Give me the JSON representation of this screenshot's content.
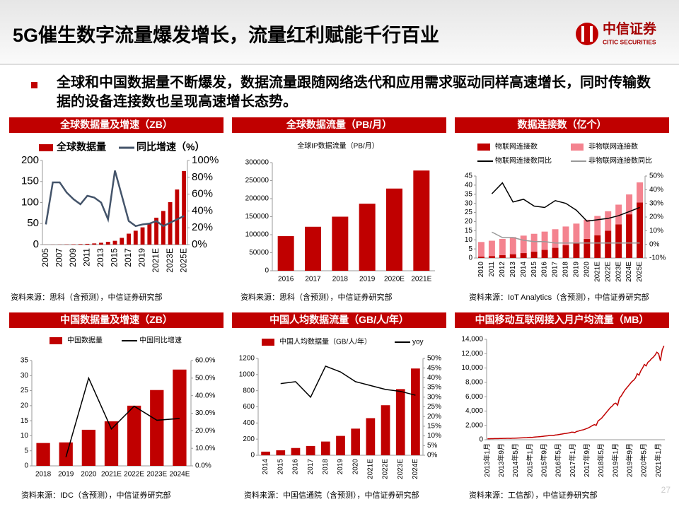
{
  "title": "5G催生数字流量爆发增长，流量红利赋能千行百业",
  "logo_name": "中信证券",
  "logo_en": "CITIC SECURITIES",
  "bullet": "全球和中国数据量不断爆发，数据流量跟随网络迭代和应用需求驱动同样高速增长，同时传输数据的设备连接数也呈现高速增长态势。",
  "page_number": "27",
  "chart_data": [
    {
      "type": "combo",
      "title": "全球数据量及增速（ZB）",
      "source": "资料来源：思科（含预测），中信证券研究部",
      "categories": [
        "2005",
        null,
        "2007",
        null,
        "2009",
        null,
        "2011",
        null,
        "2013",
        null,
        "2015",
        null,
        "2017",
        null,
        "2019",
        null,
        "2021E",
        null,
        "2023E",
        null,
        "2025E"
      ],
      "series": [
        {
          "name": "全球数据量",
          "type": "bar",
          "color": "#c00000",
          "values": [
            0.1,
            0.2,
            0.3,
            0.5,
            0.8,
            1.2,
            1.8,
            2.8,
            4.4,
            6.6,
            9,
            16,
            26,
            33,
            41,
            50,
            64,
            80,
            101,
            131,
            175
          ]
        },
        {
          "name": "同比增速（%）",
          "type": "line",
          "axis": "y2",
          "color": "#44546a",
          "values": [
            24,
            74,
            74,
            62,
            54,
            48,
            58,
            56,
            50,
            30,
            88,
            58,
            28,
            22,
            24,
            25,
            28,
            22,
            26,
            30,
            34
          ]
        }
      ],
      "ylim": [
        0,
        200
      ],
      "yticks": [
        0,
        50,
        100,
        150,
        200
      ],
      "y2lim": [
        0,
        100
      ],
      "y2ticks": [
        {
          "value": 0,
          "label": "0%"
        },
        {
          "value": 20,
          "label": "20%"
        },
        {
          "value": 40,
          "label": "40%"
        },
        {
          "value": 60,
          "label": "60%"
        },
        {
          "value": 80,
          "label": "80%"
        },
        {
          "value": 100,
          "label": "100%"
        }
      ]
    },
    {
      "type": "bar",
      "title": "全球数据流量（PB/月）",
      "subtitle": "全球IP数据流量（PB/月）",
      "source": "资料来源：思科（含预测），中信证券研究部",
      "categories": [
        "2016",
        "2017",
        "2018",
        "2019",
        "2020E",
        "2021E"
      ],
      "values": [
        96000,
        122000,
        150000,
        186000,
        228000,
        278000
      ],
      "color": "#c00000",
      "ylim": [
        0,
        300000
      ],
      "yticks": [
        0,
        50000,
        100000,
        150000,
        200000,
        250000,
        300000
      ]
    },
    {
      "type": "combo",
      "stacked": true,
      "title": "数据连接数（亿个）",
      "source": "资料来源：IoT Analytics（含预测），中信证券研究部",
      "categories": [
        "2010",
        "2011",
        "2012",
        "2013",
        "2014",
        "2015",
        "2016",
        "2017",
        "2018",
        "2019",
        "2020",
        "2021E",
        "2022E",
        "2023E",
        "2024E",
        "2025E"
      ],
      "series": [
        {
          "name": "物联网连接数",
          "type": "bar",
          "color": "#c00000",
          "values": [
            0.8,
            1.1,
            1.6,
            2.1,
            2.7,
            3.5,
            4.5,
            5.6,
            7,
            8.5,
            10.5,
            12.5,
            15,
            18.5,
            24,
            30.5
          ]
        },
        {
          "name": "非物联网连接数",
          "type": "bar",
          "color": "#f4838f",
          "values": [
            8,
            8.4,
            8.9,
            9.4,
            9.6,
            9.8,
            10,
            10.2,
            10.3,
            10.4,
            10.5,
            10.6,
            10.7,
            10.8,
            10.9,
            11
          ]
        },
        {
          "name": "物联网连接数同比",
          "type": "line",
          "axis": "y2",
          "color": "#000000",
          "values": [
            null,
            37,
            45,
            31,
            33,
            28,
            27,
            32,
            30,
            25,
            17,
            18,
            19,
            21,
            24,
            27
          ]
        },
        {
          "name": "非物联网连接数同比",
          "type": "line",
          "axis": "y2",
          "color": "#999999",
          "values": [
            null,
            9,
            5,
            5,
            3,
            2,
            2,
            1,
            1,
            1,
            1,
            1,
            1,
            1,
            1,
            1
          ]
        }
      ],
      "ylim": [
        0,
        45
      ],
      "yticks": [
        0,
        5,
        10,
        15,
        20,
        25,
        30,
        35,
        40,
        45
      ],
      "y2lim": [
        -10,
        50
      ],
      "y2ticks": [
        {
          "value": -10,
          "label": "-10%"
        },
        {
          "value": 0,
          "label": "0%"
        },
        {
          "value": 10,
          "label": "10%"
        },
        {
          "value": 20,
          "label": "20%"
        },
        {
          "value": 30,
          "label": "30%"
        },
        {
          "value": 40,
          "label": "40%"
        },
        {
          "value": 50,
          "label": "50%"
        }
      ]
    },
    {
      "type": "combo",
      "title": "中国数据量及增速（ZB）",
      "source": "资料来源：IDC（含预测），中信证券研究部",
      "categories": [
        "2018",
        "2019",
        "2020",
        "2021E",
        "2022E",
        "2023E",
        "2024E"
      ],
      "series": [
        {
          "name": "中国数据量",
          "type": "bar",
          "color": "#c00000",
          "values": [
            7.6,
            7.8,
            12,
            14.8,
            20,
            25.2,
            32
          ]
        },
        {
          "name": "中国同比增速",
          "type": "line",
          "axis": "y2",
          "color": "#000000",
          "values": [
            null,
            5,
            50,
            21,
            34,
            26,
            27
          ]
        }
      ],
      "ylim": [
        0,
        35
      ],
      "yticks": [
        0,
        5,
        10,
        15,
        20,
        25,
        30,
        35
      ],
      "y2lim": [
        0,
        60
      ],
      "y2ticks": [
        {
          "value": 0,
          "label": "0.0%"
        },
        {
          "value": 10,
          "label": "10.0%"
        },
        {
          "value": 20,
          "label": "20.0%"
        },
        {
          "value": 30,
          "label": "30.0%"
        },
        {
          "value": 40,
          "label": "40.0%"
        },
        {
          "value": 50,
          "label": "50.0%"
        },
        {
          "value": 60,
          "label": "60.0%"
        }
      ]
    },
    {
      "type": "combo",
      "title": "中国人均数据流量（GB/人/年）",
      "source": "资料来源：中国信通院（含预测），中信证券研究部",
      "categories": [
        "2014",
        "2015",
        "2016",
        "2017",
        "2018",
        "2019",
        "2020",
        "2021E",
        "2022E",
        "2023E",
        "2024E"
      ],
      "series": [
        {
          "name": "中国人均数据量（GB/人/年）",
          "type": "bar",
          "color": "#c00000",
          "values": [
            45,
            62,
            90,
            115,
            170,
            240,
            330,
            460,
            620,
            820,
            1075
          ]
        },
        {
          "name": "yoy",
          "type": "line",
          "axis": "y2",
          "color": "#000000",
          "values": [
            null,
            37,
            38,
            30,
            46,
            43,
            38,
            36,
            34,
            33,
            31
          ]
        }
      ],
      "ylim": [
        0,
        1200
      ],
      "yticks": [
        0,
        200,
        400,
        600,
        800,
        1000,
        1200
      ],
      "y2lim": [
        0,
        50
      ],
      "y2ticks": [
        {
          "value": 0,
          "label": "0%"
        },
        {
          "value": 5,
          "label": "5%"
        },
        {
          "value": 10,
          "label": "10%"
        },
        {
          "value": 15,
          "label": "15%"
        },
        {
          "value": 20,
          "label": "20%"
        },
        {
          "value": 25,
          "label": "25%"
        },
        {
          "value": 30,
          "label": "30%"
        },
        {
          "value": 35,
          "label": "35%"
        },
        {
          "value": 40,
          "label": "40%"
        },
        {
          "value": 45,
          "label": "45%"
        },
        {
          "value": 50,
          "label": "50%"
        }
      ]
    },
    {
      "type": "line",
      "title": "中国移动互联网接入月户均流量（MB）",
      "source": "资料来源：工信部），中信证券研究部",
      "color": "#c00000",
      "categories": [
        "2013年1月",
        null,
        null,
        null,
        null,
        null,
        null,
        null,
        "2013年9月",
        null,
        null,
        null,
        null,
        null,
        null,
        null,
        "2014年5月",
        null,
        null,
        null,
        null,
        null,
        null,
        null,
        "2015年1月",
        null,
        null,
        null,
        null,
        null,
        null,
        null,
        "2015年9月",
        null,
        null,
        null,
        null,
        null,
        null,
        null,
        "2016年5月",
        null,
        null,
        null,
        null,
        null,
        null,
        null,
        "2017年1月",
        null,
        null,
        null,
        null,
        null,
        null,
        null,
        "2017年9月",
        null,
        null,
        null,
        null,
        null,
        null,
        null,
        "2018年5月",
        null,
        null,
        null,
        null,
        null,
        null,
        null,
        "2019年1月",
        null,
        null,
        null,
        null,
        null,
        null,
        null,
        "2019年9月",
        null,
        null,
        null,
        null,
        null,
        null,
        null,
        "2020年5月",
        null,
        null,
        null,
        null,
        null,
        null,
        null,
        "2021年1月",
        null,
        null,
        null
      ],
      "values": [
        140,
        135,
        145,
        150,
        155,
        160,
        165,
        170,
        175,
        180,
        185,
        195,
        195,
        190,
        205,
        215,
        225,
        235,
        245,
        260,
        270,
        285,
        300,
        320,
        330,
        325,
        360,
        380,
        400,
        420,
        440,
        470,
        500,
        530,
        560,
        600,
        600,
        590,
        650,
        680,
        720,
        760,
        800,
        850,
        880,
        920,
        960,
        1050,
        1050,
        1000,
        1150,
        1200,
        1300,
        1350,
        1400,
        1500,
        1600,
        1700,
        1850,
        2000,
        2100,
        2000,
        2600,
        2800,
        3000,
        3300,
        3600,
        3900,
        4200,
        4500,
        4700,
        5000,
        5100,
        4800,
        5800,
        6100,
        6500,
        6900,
        7200,
        7500,
        7800,
        8100,
        8300,
        8600,
        9200,
        9000,
        9600,
        10000,
        10500,
        10300,
        10800,
        11000,
        11300,
        11500,
        11800,
        12200,
        12000,
        11000,
        12500,
        13100
      ],
      "ylim": [
        0,
        14000
      ],
      "yticks": [
        0,
        {
          "value": 2000,
          "label": "2,000"
        },
        {
          "value": 4000,
          "label": "4,000"
        },
        {
          "value": 6000,
          "label": "6,000"
        },
        {
          "value": 8000,
          "label": "8,000"
        },
        {
          "value": 10000,
          "label": "10,000"
        },
        {
          "value": 12000,
          "label": "12,000"
        },
        {
          "value": 14000,
          "label": "14,000"
        }
      ]
    }
  ]
}
